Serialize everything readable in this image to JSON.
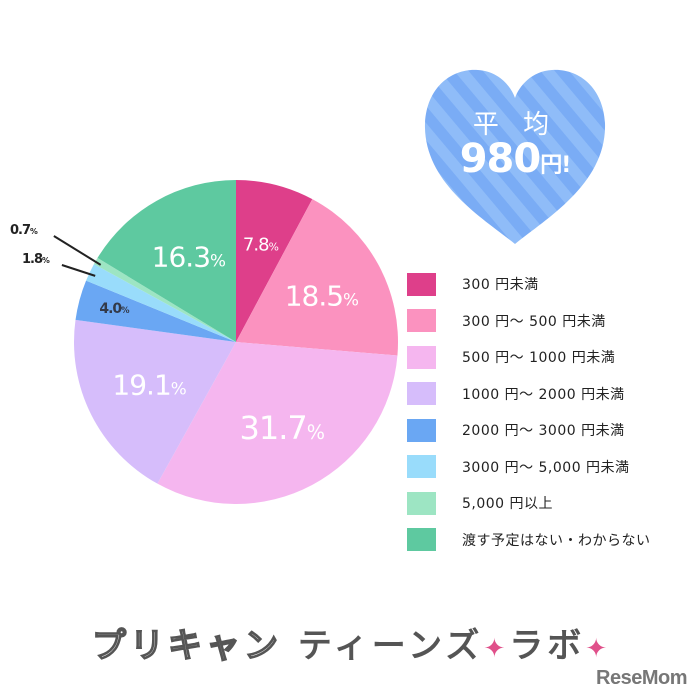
{
  "chart_data": {
    "type": "pie",
    "title": "",
    "start_angle_deg": 0,
    "direction": "clockwise",
    "categories": [
      "300円未満",
      "300円～500円未満",
      "500円～1000円未満",
      "1000円～2000円未満",
      "2000円～3000円未満",
      "3000円～5,000円未満",
      "5,000円以上",
      "渡す予定はない・わからない"
    ],
    "values": [
      7.8,
      18.5,
      31.7,
      19.1,
      4.0,
      1.8,
      0.7,
      16.3
    ],
    "colors": [
      "#de3f8a",
      "#fb92bf",
      "#f5b6ef",
      "#d6bdfb",
      "#6aa7f3",
      "#99dcfb",
      "#9de5c3",
      "#5ec9a0"
    ],
    "value_labels": [
      "7.8",
      "18.5",
      "31.7",
      "19.1",
      "4.0",
      "1.8",
      "0.7",
      "16.3"
    ],
    "unit": "%",
    "legend_position": "right"
  },
  "legend": {
    "items": [
      {
        "label": "300 円未満",
        "color": "#de3f8a"
      },
      {
        "label": "300 円～ 500 円未満",
        "color": "#fb92bf"
      },
      {
        "label": "500 円～ 1000 円未満",
        "color": "#f5b6ef"
      },
      {
        "label": "1000 円～ 2000 円未満",
        "color": "#d6bdfb"
      },
      {
        "label": "2000 円～ 3000 円未満",
        "color": "#6aa7f3"
      },
      {
        "label": "3000 円～ 5,000 円未満",
        "color": "#99dcfb"
      },
      {
        "label": "5,000 円以上",
        "color": "#9de5c3"
      },
      {
        "label": "渡す予定はない・わからない",
        "color": "#5ec9a0"
      }
    ]
  },
  "average": {
    "label": "平 均",
    "value": "980",
    "unit": "円!",
    "heart_color": "#7aacf5",
    "heart_stripe_color": "#8fbcf8"
  },
  "footer": {
    "brand_outline": "プリキャン",
    "brand_solid_1": "ティーンズ",
    "star": "✦",
    "brand_solid_2": "ラボ",
    "publisher": "ReseMom"
  }
}
